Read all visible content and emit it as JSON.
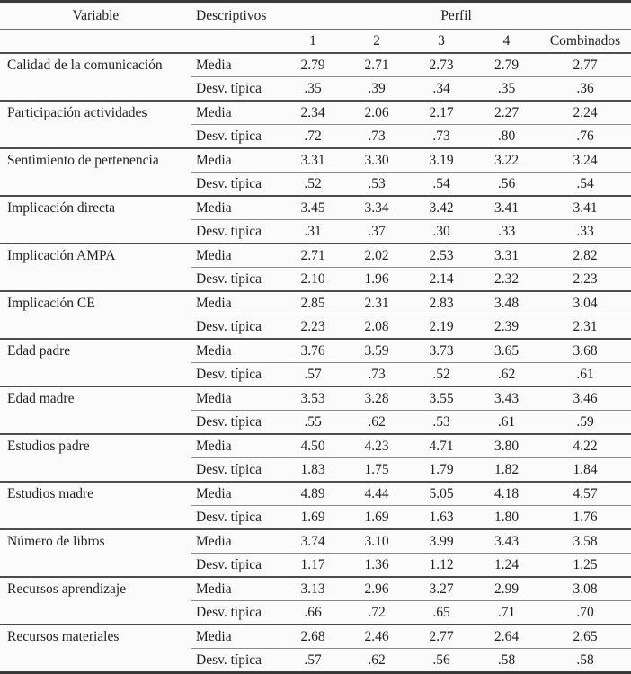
{
  "table": {
    "header": {
      "variable": "Variable",
      "descriptivos": "Descriptivos",
      "perfil": "Perfil",
      "subcolumns": [
        "1",
        "2",
        "3",
        "4",
        "Combinados"
      ]
    },
    "row_labels": {
      "media": "Media",
      "desv": "Desv. típica"
    },
    "colors": {
      "text": "#1f1f1f",
      "thin_rule": "#8a8a8a",
      "group_rule": "#4d4d4d",
      "frame_rule": "#3a3a3a",
      "background": "#fbfbfb"
    },
    "groups": [
      {
        "variable": "Calidad de la comunicación",
        "media": [
          "2.79",
          "2.71",
          "2.73",
          "2.79",
          "2.77"
        ],
        "desv": [
          ".35",
          ".39",
          ".34",
          ".35",
          ".36"
        ]
      },
      {
        "variable": "Participación actividades",
        "media": [
          "2.34",
          "2.06",
          "2.17",
          "2.27",
          "2.24"
        ],
        "desv": [
          ".72",
          ".73",
          ".73",
          ".80",
          ".76"
        ]
      },
      {
        "variable": "Sentimiento de pertenencia",
        "media": [
          "3.31",
          "3.30",
          "3.19",
          "3.22",
          "3.24"
        ],
        "desv": [
          ".52",
          ".53",
          ".54",
          ".56",
          ".54"
        ]
      },
      {
        "variable": "Implicación directa",
        "media": [
          "3.45",
          "3.34",
          "3.42",
          "3.41",
          "3.41"
        ],
        "desv": [
          ".31",
          ".37",
          ".30",
          ".33",
          ".33"
        ]
      },
      {
        "variable": "Implicación AMPA",
        "media": [
          "2.71",
          "2.02",
          "2.53",
          "3.31",
          "2.82"
        ],
        "desv": [
          "2.10",
          "1.96",
          "2.14",
          "2.32",
          "2.23"
        ]
      },
      {
        "variable": "Implicación CE",
        "media": [
          "2.85",
          "2.31",
          "2.83",
          "3.48",
          "3.04"
        ],
        "desv": [
          "2.23",
          "2.08",
          "2.19",
          "2.39",
          "2.31"
        ]
      },
      {
        "variable": "Edad padre",
        "media": [
          "3.76",
          "3.59",
          "3.73",
          "3.65",
          "3.68"
        ],
        "desv": [
          ".57",
          ".73",
          ".52",
          ".62",
          ".61"
        ]
      },
      {
        "variable": "Edad madre",
        "media": [
          "3.53",
          "3.28",
          "3.55",
          "3.43",
          "3.46"
        ],
        "desv": [
          ".55",
          ".62",
          ".53",
          ".61",
          ".59"
        ]
      },
      {
        "variable": "Estudios padre",
        "media": [
          "4.50",
          "4.23",
          "4.71",
          "3.80",
          "4.22"
        ],
        "desv": [
          "1.83",
          "1.75",
          "1.79",
          "1.82",
          "1.84"
        ]
      },
      {
        "variable": "Estudios madre",
        "media": [
          "4.89",
          "4.44",
          "5.05",
          "4.18",
          "4.57"
        ],
        "desv": [
          "1.69",
          "1.69",
          "1.63",
          "1.80",
          "1.76"
        ]
      },
      {
        "variable": "Número de libros",
        "media": [
          "3.74",
          "3.10",
          "3.99",
          "3.43",
          "3.58"
        ],
        "desv": [
          "1.17",
          "1.36",
          "1.12",
          "1.24",
          "1.25"
        ]
      },
      {
        "variable": "Recursos aprendizaje",
        "media": [
          "3.13",
          "2.96",
          "3.27",
          "2.99",
          "3.08"
        ],
        "desv": [
          ".66",
          ".72",
          ".65",
          ".71",
          ".70"
        ]
      },
      {
        "variable": "Recursos materiales",
        "media": [
          "2.68",
          "2.46",
          "2.77",
          "2.64",
          "2.65"
        ],
        "desv": [
          ".57",
          ".62",
          ".56",
          ".58",
          ".58"
        ]
      }
    ]
  }
}
